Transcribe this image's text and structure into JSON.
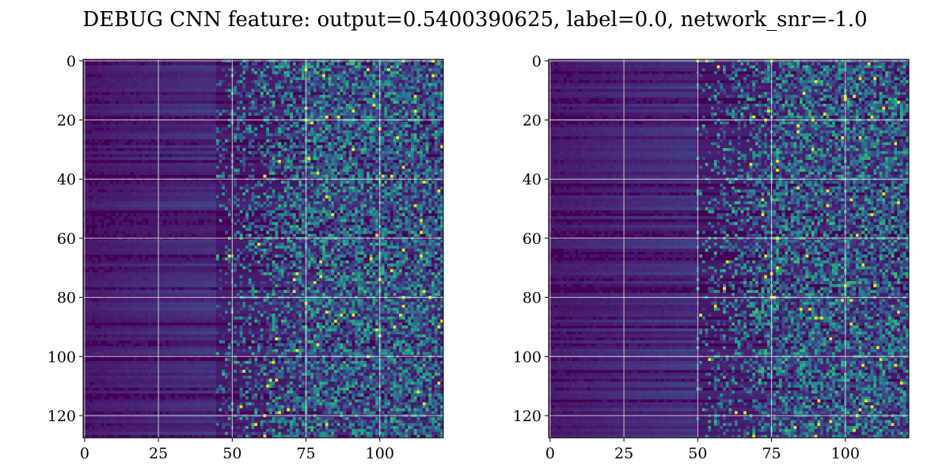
{
  "title": "DEBUG CNN feature: output=0.5400390625, label=0.0, network_snr=-1.0",
  "colors": {
    "grid": "#e6e6e6",
    "axis": "#000000",
    "colormap": [
      "#440154",
      "#482878",
      "#3e4989",
      "#31688e",
      "#26828e",
      "#1f9e89",
      "#35b779",
      "#6ece58",
      "#b5de2b",
      "#fde725"
    ]
  },
  "chart_data": [
    {
      "type": "heatmap",
      "colormap": "viridis",
      "rows": 128,
      "cols": 122,
      "xlim": [
        -0.5,
        121.5
      ],
      "ylim": [
        127.5,
        -0.5
      ],
      "xticks": [
        0,
        25,
        50,
        75,
        100
      ],
      "yticks": [
        0,
        20,
        40,
        60,
        80,
        100,
        120
      ],
      "grid": true,
      "pattern": "low values for columns 0-45 with horizontal row streaks, sparse high speckles increasing toward columns 70-121"
    },
    {
      "type": "heatmap",
      "colormap": "viridis",
      "rows": 128,
      "cols": 122,
      "xlim": [
        -0.5,
        121.5
      ],
      "ylim": [
        127.5,
        -0.5
      ],
      "xticks": [
        0,
        25,
        50,
        75,
        100
      ],
      "yticks": [
        0,
        20,
        40,
        60,
        80,
        100,
        120
      ],
      "grid": true,
      "pattern": "low values for columns 0-50 with horizontal row streaks, sparse high speckles increasing toward columns 70-121"
    }
  ]
}
